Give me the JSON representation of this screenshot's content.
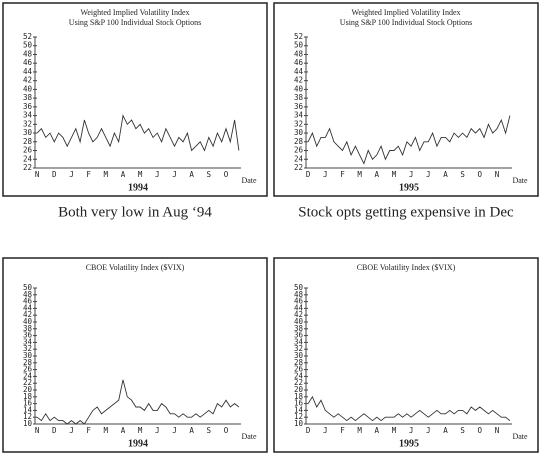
{
  "chart_data": [
    {
      "type": "line",
      "title": "Weighted Implied Volatility Index",
      "subtitle": "Using S&P 100 Individual Stock Options",
      "categories": [
        "N",
        null,
        null,
        null,
        "D",
        null,
        null,
        null,
        "J",
        null,
        null,
        null,
        "F",
        null,
        null,
        null,
        "M",
        null,
        null,
        null,
        "A",
        null,
        null,
        null,
        "M",
        null,
        null,
        null,
        "J",
        null,
        null,
        null,
        "J",
        null,
        null,
        null,
        "A",
        null,
        null,
        null,
        "S",
        null,
        null,
        null,
        "O",
        null,
        null,
        null
      ],
      "values": [
        30,
        31,
        29,
        30,
        28,
        30,
        29,
        27,
        29,
        31,
        28,
        33,
        30,
        28,
        29,
        31,
        29,
        27,
        30,
        28,
        34,
        32,
        33,
        31,
        32,
        30,
        31,
        29,
        30,
        28,
        31,
        29,
        27,
        29,
        28,
        30,
        26,
        27,
        28,
        26,
        29,
        27,
        30,
        28,
        31,
        28,
        33,
        26
      ],
      "color": "#333333",
      "ylim": [
        22,
        52
      ],
      "yticks": [
        22,
        24,
        26,
        28,
        30,
        32,
        34,
        36,
        38,
        40,
        42,
        44,
        46,
        48,
        50,
        52
      ],
      "xlabel": "1994",
      "x_note": "Date"
    },
    {
      "type": "line",
      "title": "Weighted Implied Volatility Index",
      "subtitle": "Using S&P 100 Individual Stock Options",
      "categories": [
        "D",
        null,
        null,
        null,
        "J",
        null,
        null,
        null,
        "F",
        null,
        null,
        null,
        "M",
        null,
        null,
        null,
        "A",
        null,
        null,
        null,
        "M",
        null,
        null,
        null,
        "J",
        null,
        null,
        null,
        "J",
        null,
        null,
        null,
        "A",
        null,
        null,
        null,
        "S",
        null,
        null,
        null,
        "O",
        null,
        null,
        null,
        "N",
        null,
        null,
        null
      ],
      "values": [
        28,
        30,
        27,
        29,
        29,
        31,
        28,
        27,
        26,
        28,
        25,
        27,
        25,
        23,
        26,
        24,
        25,
        27,
        24,
        26,
        26,
        27,
        25,
        28,
        27,
        29,
        26,
        28,
        28,
        30,
        27,
        29,
        29,
        28,
        30,
        29,
        30,
        29,
        31,
        30,
        31,
        29,
        32,
        30,
        31,
        33,
        30,
        34
      ],
      "color": "#333333",
      "ylim": [
        22,
        52
      ],
      "yticks": [
        22,
        24,
        26,
        28,
        30,
        32,
        34,
        36,
        38,
        40,
        42,
        44,
        46,
        48,
        50,
        52
      ],
      "xlabel": "1995",
      "x_note": "Date"
    },
    {
      "type": "line",
      "title": "CBOE Volatility Index ($VIX)",
      "categories": [
        "N",
        null,
        null,
        null,
        "D",
        null,
        null,
        null,
        "J",
        null,
        null,
        null,
        "F",
        null,
        null,
        null,
        "M",
        null,
        null,
        null,
        "A",
        null,
        null,
        null,
        "M",
        null,
        null,
        null,
        "J",
        null,
        null,
        null,
        "J",
        null,
        null,
        null,
        "A",
        null,
        null,
        null,
        "S",
        null,
        null,
        null,
        "O",
        null,
        null,
        null
      ],
      "values": [
        12,
        11,
        13,
        11,
        12,
        11,
        11,
        10,
        11,
        10,
        11,
        10,
        12,
        14,
        15,
        13,
        14,
        15,
        16,
        17,
        23,
        18,
        17,
        15,
        15,
        14,
        16,
        14,
        14,
        16,
        15,
        13,
        13,
        12,
        13,
        12,
        12,
        13,
        12,
        13,
        14,
        13,
        16,
        15,
        17,
        15,
        16,
        15
      ],
      "color": "#333333",
      "ylim": [
        10,
        50
      ],
      "yticks": [
        10,
        12,
        14,
        16,
        18,
        20,
        22,
        24,
        26,
        28,
        30,
        32,
        34,
        36,
        38,
        40,
        42,
        44,
        46,
        48,
        50
      ],
      "xlabel": "1994",
      "x_note": "Date"
    },
    {
      "type": "line",
      "title": "CBOE Volatility Index ($VIX)",
      "categories": [
        "D",
        null,
        null,
        null,
        "J",
        null,
        null,
        null,
        "F",
        null,
        null,
        null,
        "M",
        null,
        null,
        null,
        "A",
        null,
        null,
        null,
        "M",
        null,
        null,
        null,
        "J",
        null,
        null,
        null,
        "J",
        null,
        null,
        null,
        "A",
        null,
        null,
        null,
        "S",
        null,
        null,
        null,
        "O",
        null,
        null,
        null,
        "N",
        null,
        null,
        null
      ],
      "values": [
        16,
        18,
        15,
        17,
        14,
        13,
        12,
        13,
        12,
        11,
        12,
        11,
        12,
        13,
        12,
        11,
        12,
        11,
        12,
        12,
        12,
        13,
        12,
        13,
        12,
        13,
        14,
        13,
        12,
        13,
        14,
        13,
        13,
        14,
        13,
        14,
        14,
        13,
        15,
        14,
        15,
        14,
        13,
        14,
        13,
        12,
        12,
        11
      ],
      "color": "#333333",
      "ylim": [
        10,
        50
      ],
      "yticks": [
        10,
        12,
        14,
        16,
        18,
        20,
        22,
        24,
        26,
        28,
        30,
        32,
        34,
        36,
        38,
        40,
        42,
        44,
        46,
        48,
        50
      ],
      "xlabel": "1995",
      "x_note": "Date"
    }
  ],
  "captions": [
    "Both very low in Aug ‘94",
    "Stock opts getting expensive in Dec"
  ]
}
